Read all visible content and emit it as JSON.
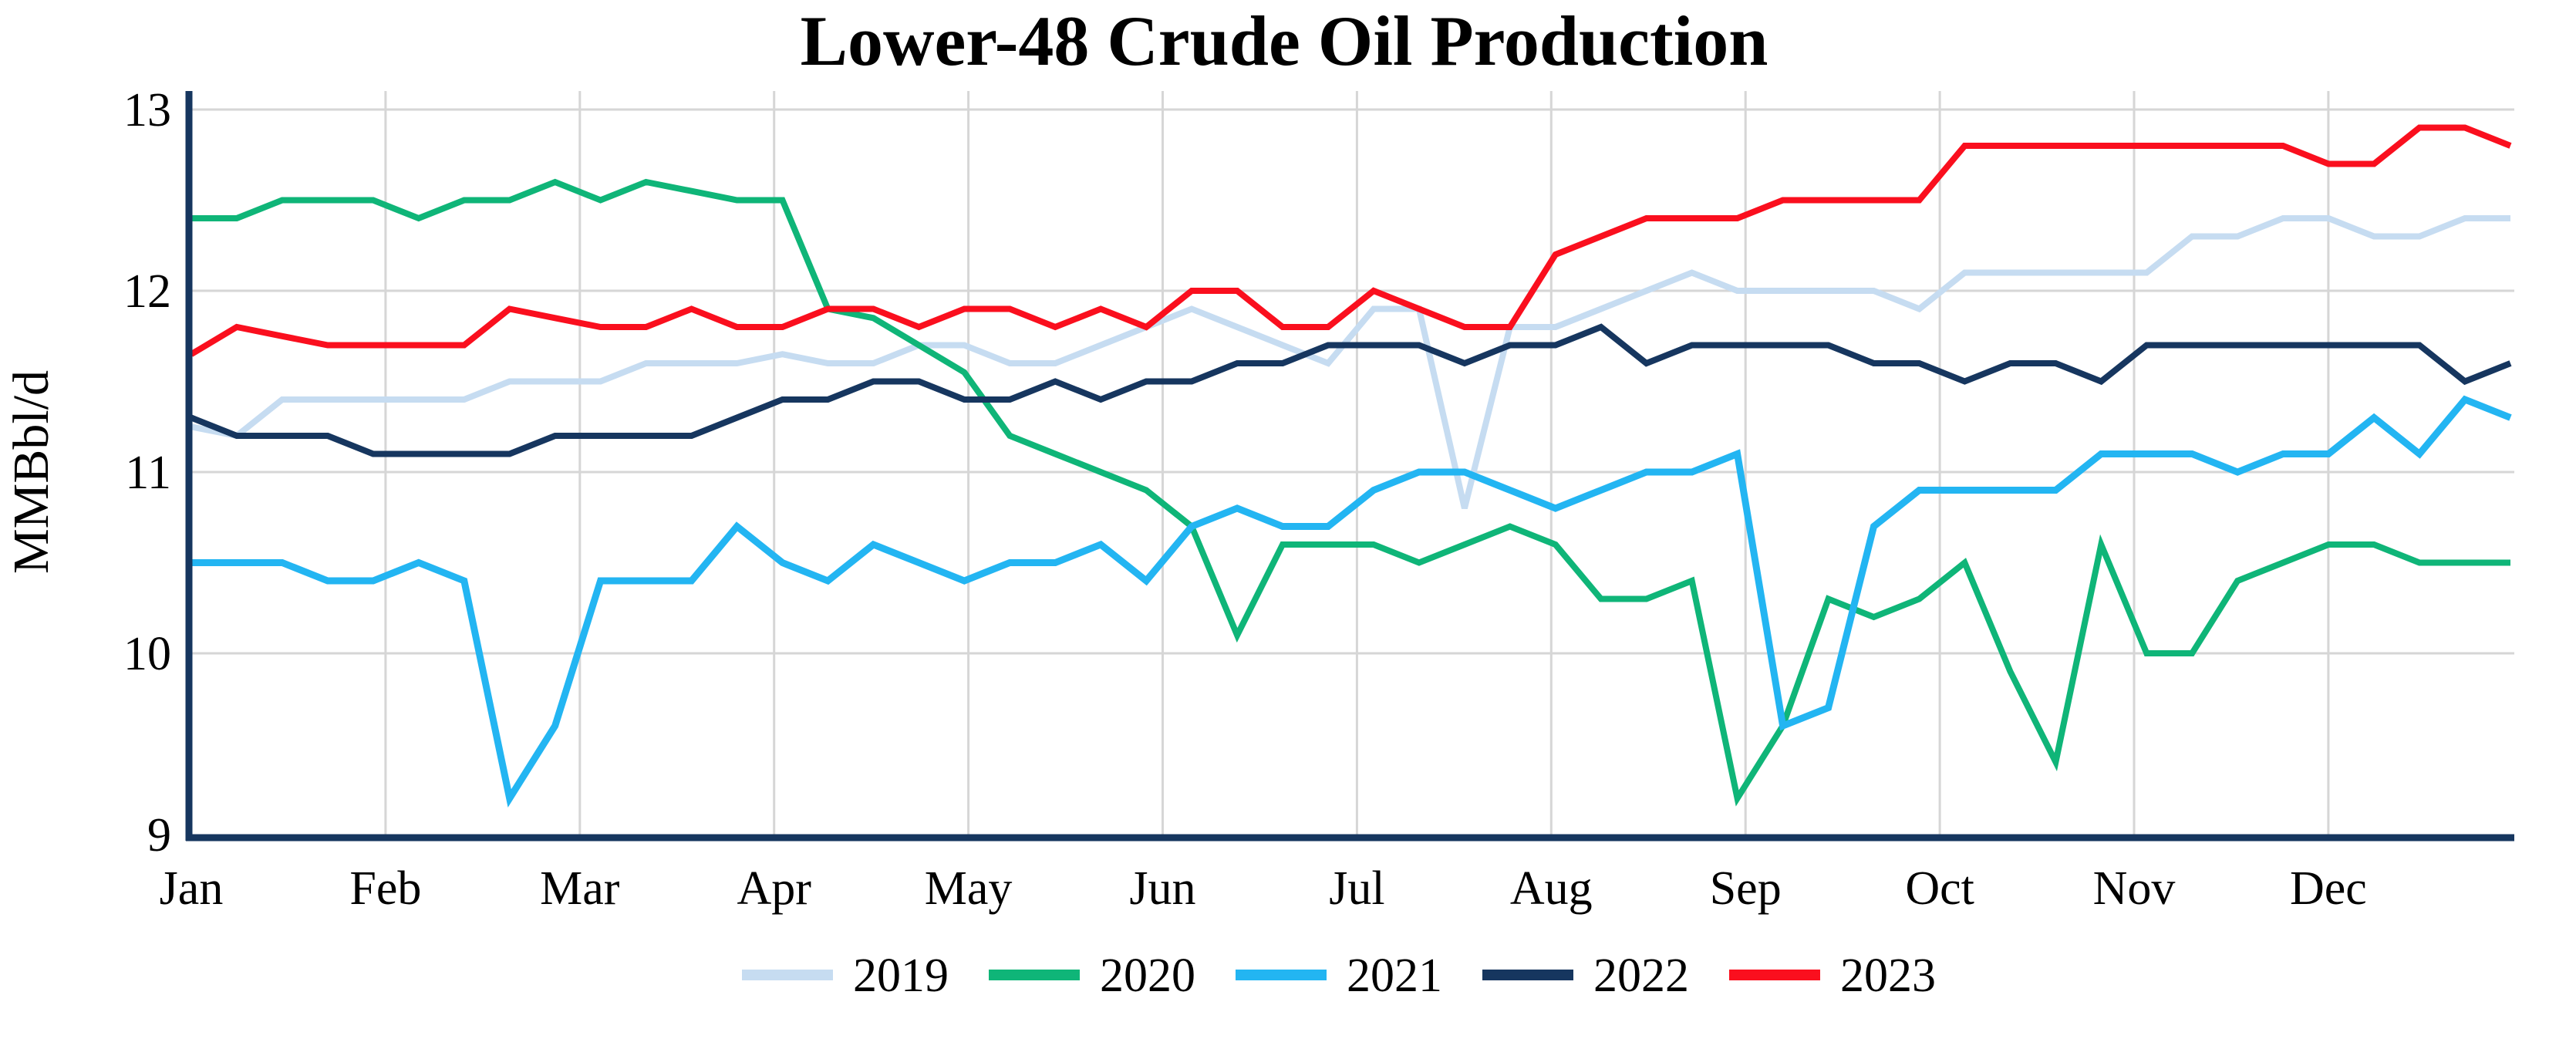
{
  "title": "Lower-48 Crude Oil Production",
  "chart_data": {
    "type": "line",
    "title": "Lower-48 Crude Oil Production",
    "xlabel": "",
    "ylabel": "MMBbl/d",
    "ylim": [
      9,
      13.1
    ],
    "yticks": [
      9,
      10,
      11,
      12,
      13
    ],
    "x_tick_labels": [
      "Jan",
      "Feb",
      "Mar",
      "Apr",
      "May",
      "Jun",
      "Jul",
      "Aug",
      "Sep",
      "Oct",
      "Nov",
      "Dec"
    ],
    "x_unit": "week (52 weekly points per year)",
    "grid": true,
    "grid_color": "#D6D6D6",
    "axis_color": "#16365F",
    "legend_position": "bottom-center",
    "series": [
      {
        "name": "2019",
        "color": "#C6DCF1",
        "line_width": 8,
        "values": [
          11.25,
          11.2,
          11.4,
          11.4,
          11.4,
          11.4,
          11.4,
          11.5,
          11.5,
          11.5,
          11.6,
          11.6,
          11.6,
          11.65,
          11.6,
          11.6,
          11.7,
          11.7,
          11.6,
          11.6,
          11.7,
          11.8,
          11.9,
          11.8,
          11.7,
          11.6,
          11.9,
          11.9,
          10.8,
          11.8,
          11.8,
          11.9,
          12.0,
          12.1,
          12.0,
          12.0,
          12.0,
          12.0,
          11.9,
          12.1,
          12.1,
          12.1,
          12.1,
          12.1,
          12.3,
          12.3,
          12.4,
          12.4,
          12.3,
          12.3,
          12.4,
          12.4
        ]
      },
      {
        "name": "2020",
        "color": "#0FB578",
        "line_width": 8,
        "values": [
          12.4,
          12.4,
          12.5,
          12.5,
          12.5,
          12.4,
          12.5,
          12.5,
          12.6,
          12.5,
          12.6,
          12.55,
          12.5,
          12.5,
          11.9,
          11.85,
          11.7,
          11.55,
          11.2,
          11.1,
          11.0,
          10.9,
          10.7,
          10.1,
          10.6,
          10.6,
          10.6,
          10.5,
          10.6,
          10.7,
          10.6,
          10.3,
          10.3,
          10.4,
          9.2,
          9.6,
          10.3,
          10.2,
          10.3,
          10.5,
          9.9,
          9.4,
          10.6,
          10.0,
          10.0,
          10.4,
          10.5,
          10.6,
          10.6,
          10.5,
          10.5,
          10.5
        ]
      },
      {
        "name": "2021",
        "color": "#23B5F2",
        "line_width": 9,
        "values": [
          10.5,
          10.5,
          10.5,
          10.4,
          10.4,
          10.5,
          10.4,
          9.2,
          9.6,
          10.4,
          10.4,
          10.4,
          10.7,
          10.5,
          10.4,
          10.6,
          10.5,
          10.4,
          10.5,
          10.5,
          10.6,
          10.4,
          10.7,
          10.8,
          10.7,
          10.7,
          10.9,
          11.0,
          11.0,
          10.9,
          10.8,
          10.9,
          11.0,
          11.0,
          11.1,
          9.6,
          9.7,
          10.7,
          10.9,
          10.9,
          10.9,
          10.9,
          11.1,
          11.1,
          11.1,
          11.0,
          11.1,
          11.1,
          11.3,
          11.1,
          11.4,
          11.3
        ]
      },
      {
        "name": "2022",
        "color": "#16365F",
        "line_width": 8,
        "values": [
          11.3,
          11.2,
          11.2,
          11.2,
          11.1,
          11.1,
          11.1,
          11.1,
          11.2,
          11.2,
          11.2,
          11.2,
          11.3,
          11.4,
          11.4,
          11.5,
          11.5,
          11.4,
          11.4,
          11.5,
          11.4,
          11.5,
          11.5,
          11.6,
          11.6,
          11.7,
          11.7,
          11.7,
          11.6,
          11.7,
          11.7,
          11.8,
          11.6,
          11.7,
          11.7,
          11.7,
          11.7,
          11.6,
          11.6,
          11.5,
          11.6,
          11.6,
          11.5,
          11.7,
          11.7,
          11.7,
          11.7,
          11.7,
          11.7,
          11.7,
          11.5,
          11.6
        ]
      },
      {
        "name": "2023",
        "color": "#FA0F1E",
        "line_width": 8,
        "values": [
          11.65,
          11.8,
          11.75,
          11.7,
          11.7,
          11.7,
          11.7,
          11.9,
          11.85,
          11.8,
          11.8,
          11.9,
          11.8,
          11.8,
          11.9,
          11.9,
          11.8,
          11.9,
          11.9,
          11.8,
          11.9,
          11.8,
          12.0,
          12.0,
          11.8,
          11.8,
          12.0,
          11.9,
          11.8,
          11.8,
          12.2,
          12.3,
          12.4,
          12.4,
          12.4,
          12.5,
          12.5,
          12.5,
          12.5,
          12.8,
          12.8,
          12.8,
          12.8,
          12.8,
          12.8,
          12.8,
          12.8,
          12.7,
          12.7,
          12.9,
          12.9,
          12.8
        ]
      }
    ]
  }
}
